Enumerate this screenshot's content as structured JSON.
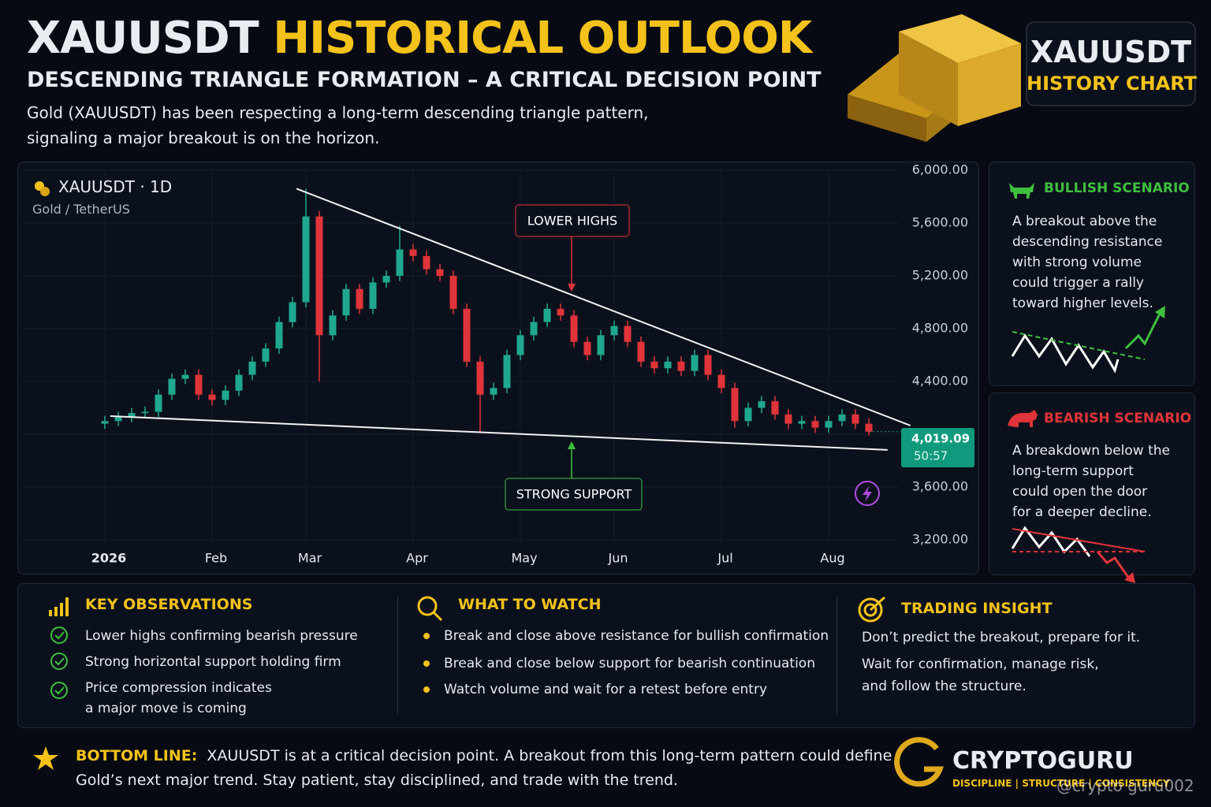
{
  "header": {
    "title_white": "XAUUSDT",
    "title_gold": "HISTORICAL OUTLOOK",
    "subtitle": "DESCENDING TRIANGLE FORMATION – A CRITICAL DECISION POINT",
    "description": [
      "Gold (XAUUSDT) has been respecting a long-term descending triangle pattern,",
      "signaling a major breakout is on the horizon."
    ]
  },
  "badge": {
    "line1": "XAUUSDT",
    "line2": "HISTORY CHART"
  },
  "chart_data": {
    "type": "candlestick",
    "symbol": "XAUUSDT · 1D",
    "pair": "Gold / TetherUS",
    "categories": [
      "2026",
      null,
      null,
      null,
      null,
      null,
      null,
      null,
      "Feb",
      null,
      null,
      null,
      null,
      null,
      null,
      "Mar",
      null,
      null,
      null,
      null,
      null,
      null,
      null,
      "Apr",
      null,
      null,
      null,
      null,
      null,
      null,
      null,
      "May",
      null,
      null,
      null,
      null,
      null,
      null,
      "Jun",
      null,
      null,
      null,
      null,
      null,
      null,
      null,
      "Jul",
      null,
      null,
      null,
      null,
      null,
      null,
      null,
      "Aug",
      null,
      null,
      null
    ],
    "open": [
      4080,
      4100,
      4130,
      4160,
      4170,
      4300,
      4420,
      4450,
      4300,
      4260,
      4330,
      4450,
      4550,
      4650,
      4850,
      5000,
      5650,
      4750,
      4900,
      5100,
      4950,
      5150,
      5200,
      5400,
      5350,
      5250,
      5200,
      4950,
      4550,
      4300,
      4350,
      4600,
      4750,
      4850,
      4950,
      4900,
      4700,
      4600,
      4750,
      4820,
      4700,
      4550,
      4500,
      4550,
      4480,
      4600,
      4450,
      4350,
      4100,
      4200,
      4250,
      4150,
      4080,
      4100,
      4050,
      4100,
      4150,
      4080
    ],
    "high": [
      4140,
      4170,
      4200,
      4210,
      4340,
      4460,
      4490,
      4490,
      4340,
      4370,
      4490,
      4590,
      4690,
      4890,
      5040,
      5860,
      5690,
      4940,
      5140,
      5140,
      5190,
      5240,
      5580,
      5440,
      5390,
      5290,
      5240,
      4990,
      4590,
      4390,
      4640,
      4790,
      4890,
      4990,
      4990,
      4940,
      4740,
      4790,
      4860,
      4860,
      4740,
      4590,
      4590,
      4590,
      4640,
      4640,
      4490,
      4390,
      4240,
      4290,
      4290,
      4190,
      4140,
      4140,
      4140,
      4190,
      4190,
      4120
    ],
    "low": [
      4040,
      4060,
      4090,
      4120,
      4130,
      4260,
      4380,
      4260,
      4220,
      4220,
      4290,
      4410,
      4510,
      4610,
      4810,
      4960,
      4400,
      4710,
      4860,
      4910,
      4910,
      5110,
      5160,
      5310,
      5210,
      5160,
      4910,
      4510,
      4020,
      4260,
      4310,
      4560,
      4710,
      4810,
      4860,
      4660,
      4560,
      4560,
      4710,
      4660,
      4510,
      4460,
      4460,
      4440,
      4440,
      4410,
      4310,
      4050,
      4060,
      4160,
      4110,
      4040,
      4040,
      4010,
      4010,
      4060,
      4040,
      3990
    ],
    "close": [
      4100,
      4130,
      4160,
      4170,
      4300,
      4420,
      4450,
      4300,
      4260,
      4330,
      4450,
      4550,
      4650,
      4850,
      5000,
      5650,
      4750,
      4900,
      5100,
      4950,
      5150,
      5200,
      5400,
      5350,
      5250,
      5200,
      4950,
      4550,
      4300,
      4350,
      4600,
      4750,
      4850,
      4950,
      4900,
      4700,
      4600,
      4750,
      4820,
      4700,
      4550,
      4500,
      4550,
      4480,
      4600,
      4450,
      4350,
      4100,
      4200,
      4250,
      4150,
      4080,
      4100,
      4050,
      4100,
      4150,
      4080,
      4019.09
    ],
    "up_color": "#1fa88f",
    "down_color": "#e0343a",
    "ylim": [
      3100,
      6050
    ],
    "yticks": [
      {
        "value": 3200,
        "label": "3,200.00"
      },
      {
        "value": 3600,
        "label": "3,600.00"
      },
      {
        "value": 4000,
        "label": "4,000.00"
      },
      {
        "value": 4400,
        "label": "4,400.00"
      },
      {
        "value": 4800,
        "label": "4,800.00"
      },
      {
        "value": 5200,
        "label": "5,200.00"
      },
      {
        "value": 5600,
        "label": "5,600.00"
      },
      {
        "value": 6000,
        "label": "6,000.00"
      }
    ],
    "grid": true,
    "last_price": {
      "value": 4019.09,
      "label": "4,019.09"
    },
    "countdown": "50:57",
    "resistance": {
      "x": [
        14.3,
        60.1
      ],
      "y": [
        5860,
        4066
      ]
    },
    "support": {
      "x": [
        0.4,
        58.4
      ],
      "y": [
        4137,
        3881
      ]
    },
    "annotations": {
      "lower_highs": "LOWER HIGHS",
      "strong_support": "STRONG SUPPORT"
    }
  },
  "bullish": {
    "title": "BULLISH SCENARIO",
    "lines": [
      "A breakout above the",
      "descending resistance",
      "with strong volume",
      "could trigger a rally",
      "toward higher levels."
    ]
  },
  "bearish": {
    "title": "BEARISH SCENARIO",
    "lines": [
      "A breakdown below the",
      "long-term support",
      "could open the door",
      "for a deeper decline."
    ]
  },
  "observations": {
    "title": "KEY OBSERVATIONS",
    "items": [
      [
        "Lower highs confirming bearish pressure"
      ],
      [
        "Strong horizontal support holding firm"
      ],
      [
        "Price compression indicates",
        "a major move is coming"
      ]
    ]
  },
  "watch": {
    "title": "WHAT TO WATCH",
    "items": [
      "Break and close above resistance for bullish confirmation",
      "Break and close below support for bearish continuation",
      "Watch volume and wait for a retest before entry"
    ]
  },
  "insight": {
    "title": "TRADING INSIGHT",
    "lines": [
      "Don’t predict the breakout, prepare for it.",
      "Wait for confirmation, manage risk,",
      "and follow the structure."
    ]
  },
  "bottom_line": {
    "label": "BOTTOM LINE:",
    "lines": [
      "XAUUSDT is at a critical decision point. A breakout from this long-term pattern could define",
      "Gold’s next major trend. Stay patient, stay disciplined, and trade with the trend."
    ]
  },
  "brand": {
    "name": "CRYPTOGURU",
    "tagline": "DISCIPLINE | STRUCTURE | CONSISTENCY",
    "watermark": "@crypto guru002"
  }
}
